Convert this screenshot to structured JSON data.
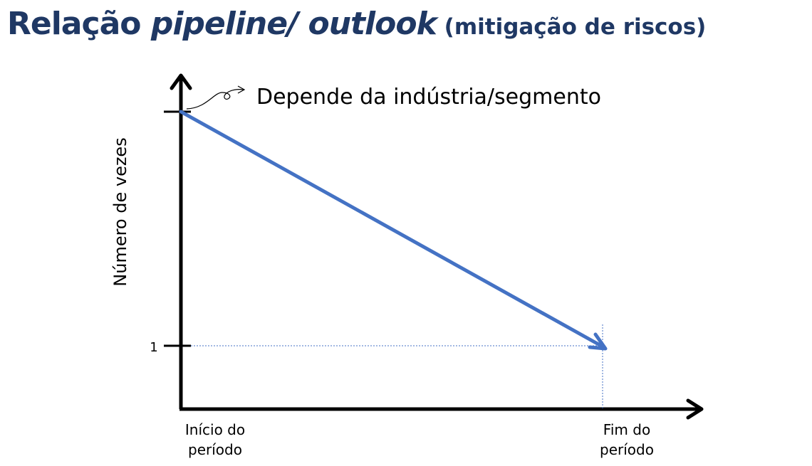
{
  "title": {
    "part1": "Relação ",
    "part2": "pipeline/ outlook",
    "part3": " (mitigação de riscos)"
  },
  "colors": {
    "title": "#1f3864",
    "line": "#4472c4",
    "axis": "#000000",
    "guide": "#4472c4"
  },
  "chart_data": {
    "type": "line",
    "ylabel": "Número de vezes",
    "x_categories": [
      "Início do período",
      "Fim do período"
    ],
    "x_tick_labels": [
      [
        "Início do",
        "período"
      ],
      [
        "Fim do",
        "período"
      ]
    ],
    "y_tick_labels": [
      "1"
    ],
    "series": [
      {
        "points": [
          {
            "x": "Início do período",
            "y": "Depende da indústria/segmento"
          },
          {
            "x": "Fim do período",
            "y": 1
          }
        ]
      }
    ],
    "annotation": "Depende da indústria/segmento",
    "grid": false,
    "legend": "none"
  }
}
